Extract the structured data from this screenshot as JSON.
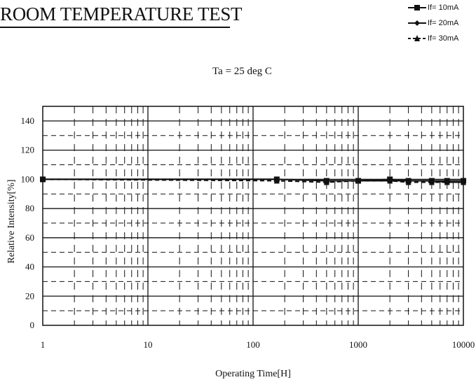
{
  "header": {
    "title": "ROOM TEMPERATURE TEST",
    "subtitle": "Ta = 25 deg C"
  },
  "chart_data": {
    "type": "line",
    "title": "ROOM TEMPERATURE TEST",
    "subtitle": "Ta = 25 deg C",
    "xlabel": "Operating Time[H]",
    "ylabel": "Relative Intensity[%]",
    "x_scale": "log",
    "xlim": [
      1,
      10000
    ],
    "ylim": [
      0,
      150
    ],
    "x_ticks": [
      "1",
      "10",
      "100",
      "1000",
      "10000"
    ],
    "y_ticks": [
      "0",
      "20",
      "40",
      "60",
      "80",
      "100",
      "120",
      "140"
    ],
    "grid": true,
    "legend_position": "top-right",
    "series": [
      {
        "name": "If= 10mA",
        "line_style": "solid",
        "marker": "square",
        "color": "#111111",
        "x": [
          1,
          168,
          500,
          1000,
          2000,
          3000,
          5000,
          7000,
          10000
        ],
        "y": [
          100,
          100,
          99,
          99,
          100,
          99,
          99,
          99,
          99
        ]
      },
      {
        "name": "If= 20mA",
        "line_style": "solid",
        "marker": "diamond",
        "color": "#111111",
        "x": [
          1,
          168,
          500,
          1000,
          2000,
          3000,
          5000,
          7000,
          10000
        ],
        "y": [
          100,
          100,
          99,
          99,
          99,
          99,
          99,
          98,
          98
        ]
      },
      {
        "name": "If= 30mA",
        "line_style": "dashed",
        "marker": "triangle",
        "color": "#111111",
        "x": [
          1,
          168,
          500,
          1000,
          2000,
          3000,
          5000,
          7000,
          10000
        ],
        "y": [
          100,
          99,
          98,
          99,
          99,
          98,
          98,
          98,
          98
        ]
      }
    ]
  }
}
